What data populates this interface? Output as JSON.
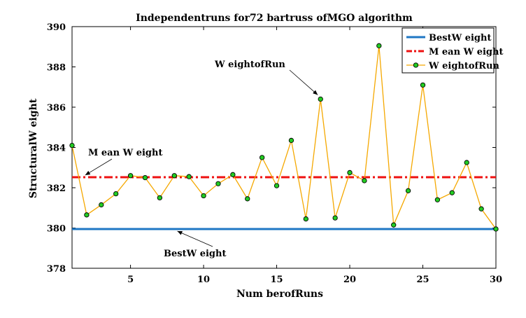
{
  "chart_data": {
    "type": "line",
    "title": "Independentruns for72 bartruss ofMGO algorithm",
    "xlabel": "Num berofRuns",
    "ylabel": "StructuralW eight",
    "xlim": [
      1,
      30
    ],
    "ylim": [
      378,
      390
    ],
    "xticks": [
      5,
      10,
      15,
      20,
      25,
      30
    ],
    "yticks": [
      378,
      380,
      382,
      384,
      386,
      388,
      390
    ],
    "grid": false,
    "legend_position": "top-right",
    "series": [
      {
        "name": "BestW eight",
        "type": "hline",
        "value": 379.95,
        "color": "#1f77c4",
        "style": "solid"
      },
      {
        "name": "M ean W eight",
        "type": "hline",
        "value": 382.52,
        "color": "#ee1111",
        "style": "dashdot"
      },
      {
        "name": "W eightofRun",
        "type": "line-markers",
        "line_color": "#f5a800",
        "marker_color": "#22cc22",
        "x": [
          1,
          2,
          3,
          4,
          5,
          6,
          7,
          8,
          9,
          10,
          11,
          12,
          13,
          14,
          15,
          16,
          17,
          18,
          19,
          20,
          21,
          22,
          23,
          24,
          25,
          26,
          27,
          28,
          29,
          30
        ],
        "values": [
          384.1,
          380.65,
          381.15,
          381.7,
          382.6,
          382.5,
          381.5,
          382.6,
          382.55,
          381.6,
          382.2,
          382.65,
          381.45,
          383.5,
          382.1,
          384.35,
          380.45,
          386.4,
          380.5,
          382.75,
          382.35,
          389.05,
          380.15,
          381.85,
          387.1,
          381.4,
          381.75,
          383.25,
          380.95,
          379.95
        ]
      }
    ],
    "annotations": [
      {
        "text": "W eightofRun",
        "target_x": 18,
        "target_y": 386.4
      },
      {
        "text": "M ean W eight",
        "target_x": 1.9,
        "target_y": 382.52
      },
      {
        "text": "BestW eight",
        "target_x": 8.2,
        "target_y": 379.95
      }
    ]
  }
}
